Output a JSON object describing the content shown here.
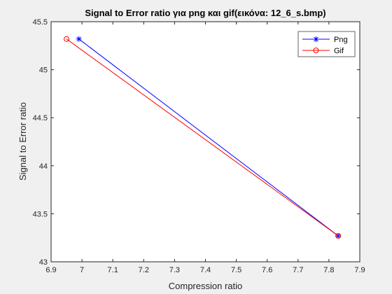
{
  "chart_data": {
    "type": "line",
    "title": "Signal to Error ratio για png και gif(εικόνα: 12_6_s.bmp)",
    "xlabel": "Compression ratio",
    "ylabel": "Signal to Error ratio",
    "xlim": [
      6.9,
      7.9
    ],
    "ylim": [
      43,
      45.5
    ],
    "xticks": [
      "6.9",
      "7",
      "7.1",
      "7.2",
      "7.3",
      "7.4",
      "7.5",
      "7.6",
      "7.7",
      "7.8",
      "7.9"
    ],
    "yticks": [
      "43",
      "43.5",
      "44",
      "44.5",
      "45",
      "45.5"
    ],
    "grid": false,
    "legend_position": "top-right",
    "series": [
      {
        "name": "Png",
        "color": "#0000ff",
        "marker": "asterisk",
        "x": [
          6.99,
          7.83
        ],
        "y": [
          45.32,
          43.27
        ]
      },
      {
        "name": "Gif",
        "color": "#ff0000",
        "marker": "circle",
        "x": [
          6.95,
          7.83
        ],
        "y": [
          45.32,
          43.27
        ]
      }
    ]
  }
}
